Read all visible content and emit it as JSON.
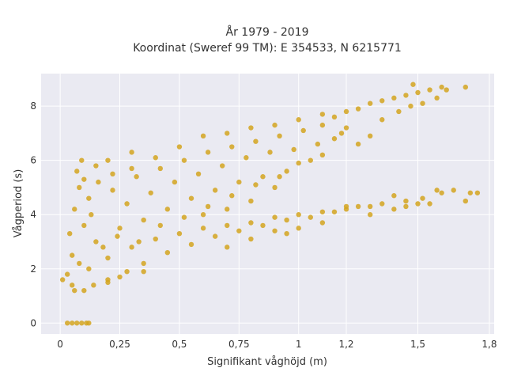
{
  "chart_data": {
    "type": "scatter",
    "title": "År 1979 - 2019",
    "subtitle": "Koordinat (Sweref 99 TM): E 354533, N 6215771",
    "xlabel": "Signifikant våghöjd (m)",
    "ylabel": "Vågperiod (s)",
    "xlim": [
      -0.08,
      1.82
    ],
    "ylim": [
      -0.4,
      9.2
    ],
    "x_ticks": [
      {
        "value": 0,
        "label": "0"
      },
      {
        "value": 0.25,
        "label": "0,25"
      },
      {
        "value": 0.5,
        "label": "0,5"
      },
      {
        "value": 0.75,
        "label": "0,75"
      },
      {
        "value": 1,
        "label": "1"
      },
      {
        "value": 1.2,
        "label": "1,2"
      },
      {
        "value": 1.5,
        "label": "1,5"
      },
      {
        "value": 1.8,
        "label": "1,8"
      }
    ],
    "y_ticks": [
      {
        "value": 0,
        "label": "0"
      },
      {
        "value": 2,
        "label": "2"
      },
      {
        "value": 4,
        "label": "4"
      },
      {
        "value": 6,
        "label": "6"
      },
      {
        "value": 8,
        "label": "8"
      }
    ],
    "grid": true,
    "legend": "none",
    "colors": {
      "marker": "#d4a420",
      "plot_bg": "#eaeaf2",
      "grid": "#ffffff",
      "text": "#333333"
    },
    "series": [
      {
        "points": [
          [
            0.03,
            0
          ],
          [
            0.05,
            0
          ],
          [
            0.07,
            0
          ],
          [
            0.09,
            0
          ],
          [
            0.11,
            0
          ],
          [
            0.12,
            0
          ],
          [
            0.01,
            1.6
          ],
          [
            0.03,
            1.8
          ],
          [
            0.05,
            2.5
          ],
          [
            0.04,
            3.3
          ],
          [
            0.06,
            4.2
          ],
          [
            0.08,
            5.0
          ],
          [
            0.07,
            5.6
          ],
          [
            0.09,
            6.0
          ],
          [
            0.1,
            5.3
          ],
          [
            0.06,
            1.2
          ],
          [
            0.1,
            1.2
          ],
          [
            0.14,
            1.4
          ],
          [
            0.2,
            1.6
          ],
          [
            0.28,
            1.9
          ],
          [
            0.35,
            2.2
          ],
          [
            0.45,
            2.6
          ],
          [
            0.55,
            2.9
          ],
          [
            0.65,
            3.2
          ],
          [
            0.75,
            3.4
          ],
          [
            0.85,
            3.6
          ],
          [
            0.95,
            3.8
          ],
          [
            1.05,
            3.9
          ],
          [
            1.15,
            4.1
          ],
          [
            1.25,
            4.3
          ],
          [
            1.35,
            4.4
          ],
          [
            1.45,
            4.5
          ],
          [
            1.52,
            4.6
          ],
          [
            1.6,
            4.8
          ],
          [
            1.65,
            4.9
          ],
          [
            1.72,
            4.8
          ],
          [
            1.75,
            4.8
          ],
          [
            0.12,
            2.0
          ],
          [
            0.2,
            2.4
          ],
          [
            0.3,
            2.8
          ],
          [
            0.4,
            3.1
          ],
          [
            0.5,
            3.3
          ],
          [
            0.6,
            3.5
          ],
          [
            0.7,
            3.6
          ],
          [
            0.8,
            3.7
          ],
          [
            0.9,
            3.9
          ],
          [
            1.0,
            4.0
          ],
          [
            1.1,
            4.1
          ],
          [
            1.2,
            4.2
          ],
          [
            1.3,
            4.3
          ],
          [
            1.4,
            4.2
          ],
          [
            1.5,
            4.4
          ],
          [
            0.15,
            3.0
          ],
          [
            0.25,
            3.5
          ],
          [
            0.35,
            3.8
          ],
          [
            0.45,
            4.2
          ],
          [
            0.55,
            4.6
          ],
          [
            0.65,
            4.9
          ],
          [
            0.75,
            5.2
          ],
          [
            0.85,
            5.4
          ],
          [
            0.95,
            5.6
          ],
          [
            1.0,
            5.9
          ],
          [
            1.05,
            6.0
          ],
          [
            1.1,
            6.2
          ],
          [
            0.9,
            5.0
          ],
          [
            0.8,
            4.5
          ],
          [
            0.7,
            4.2
          ],
          [
            0.6,
            4.0
          ],
          [
            0.12,
            4.6
          ],
          [
            0.22,
            4.9
          ],
          [
            0.32,
            5.4
          ],
          [
            0.42,
            5.7
          ],
          [
            0.52,
            6.0
          ],
          [
            0.62,
            6.3
          ],
          [
            0.72,
            6.5
          ],
          [
            0.82,
            6.7
          ],
          [
            0.92,
            6.9
          ],
          [
            1.02,
            7.1
          ],
          [
            1.1,
            7.3
          ],
          [
            1.15,
            7.6
          ],
          [
            1.2,
            7.8
          ],
          [
            1.25,
            7.9
          ],
          [
            1.3,
            8.1
          ],
          [
            1.35,
            8.2
          ],
          [
            1.4,
            8.3
          ],
          [
            1.45,
            8.4
          ],
          [
            1.5,
            8.5
          ],
          [
            1.55,
            8.6
          ],
          [
            1.6,
            8.7
          ],
          [
            1.7,
            8.7
          ],
          [
            1.48,
            8.8
          ],
          [
            0.2,
            6.0
          ],
          [
            0.3,
            6.3
          ],
          [
            0.4,
            6.1
          ],
          [
            0.5,
            6.5
          ],
          [
            0.6,
            6.9
          ],
          [
            0.7,
            7.0
          ],
          [
            0.8,
            7.2
          ],
          [
            0.9,
            7.3
          ],
          [
            1.0,
            7.5
          ],
          [
            1.1,
            7.7
          ],
          [
            1.2,
            7.2
          ],
          [
            1.3,
            6.9
          ],
          [
            1.25,
            6.6
          ],
          [
            0.25,
            1.7
          ],
          [
            0.35,
            1.9
          ],
          [
            0.2,
            1.5
          ],
          [
            0.3,
            5.7
          ],
          [
            0.15,
            5.8
          ],
          [
            0.18,
            2.8
          ],
          [
            0.28,
            4.4
          ],
          [
            0.38,
            4.8
          ],
          [
            0.48,
            5.2
          ],
          [
            0.58,
            5.5
          ],
          [
            0.68,
            5.8
          ],
          [
            0.78,
            6.1
          ],
          [
            0.88,
            6.3
          ],
          [
            0.98,
            6.4
          ],
          [
            1.08,
            6.6
          ],
          [
            0.95,
            3.3
          ],
          [
            1.0,
            3.5
          ],
          [
            1.1,
            3.7
          ],
          [
            1.2,
            4.3
          ],
          [
            1.3,
            4.0
          ],
          [
            1.4,
            4.7
          ],
          [
            1.45,
            4.3
          ],
          [
            1.55,
            4.4
          ],
          [
            1.58,
            4.9
          ],
          [
            1.7,
            4.5
          ],
          [
            0.7,
            2.8
          ],
          [
            0.8,
            3.1
          ],
          [
            0.9,
            3.4
          ],
          [
            0.05,
            1.4
          ],
          [
            0.08,
            2.2
          ],
          [
            0.1,
            3.6
          ],
          [
            0.13,
            4.0
          ],
          [
            0.16,
            5.2
          ],
          [
            0.22,
            5.5
          ],
          [
            0.24,
            3.2
          ],
          [
            0.33,
            3.0
          ],
          [
            0.42,
            3.6
          ],
          [
            0.52,
            3.9
          ],
          [
            0.62,
            4.3
          ],
          [
            0.72,
            4.7
          ],
          [
            0.82,
            5.1
          ],
          [
            0.92,
            5.4
          ],
          [
            1.35,
            7.5
          ],
          [
            1.42,
            7.8
          ],
          [
            1.47,
            8.0
          ],
          [
            1.52,
            8.1
          ],
          [
            1.58,
            8.3
          ],
          [
            1.62,
            8.6
          ],
          [
            1.15,
            6.8
          ],
          [
            1.18,
            7.0
          ]
        ]
      }
    ]
  }
}
